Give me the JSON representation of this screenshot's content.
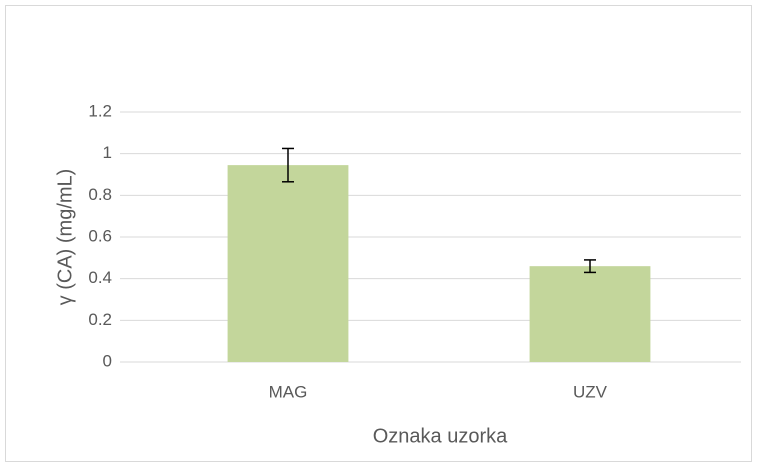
{
  "chart_data": {
    "type": "bar",
    "categories": [
      "MAG",
      "UZV"
    ],
    "values": [
      0.945,
      0.46
    ],
    "errors": [
      0.08,
      0.03
    ],
    "color": "#c3d69b",
    "x_label": "Oznaka uzorka",
    "y_label": "γ (CA) (mg/mL)",
    "ylim": [
      0,
      1.2
    ],
    "yticks": [
      0,
      0.2,
      0.4,
      0.6,
      0.8,
      1,
      1.2
    ],
    "grid": true
  }
}
